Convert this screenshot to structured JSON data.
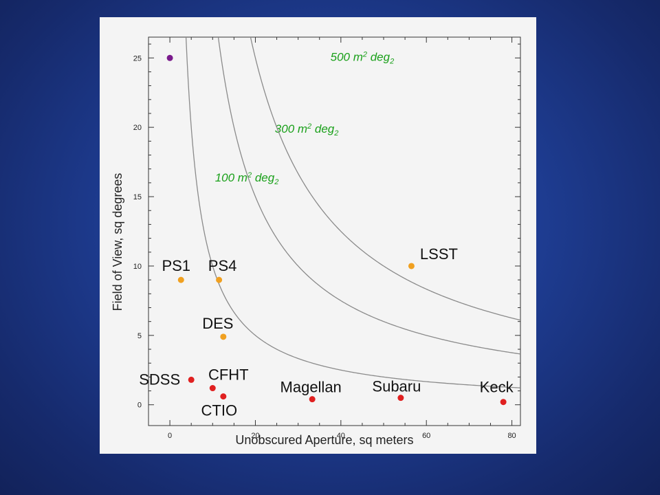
{
  "chart_data": {
    "type": "scatter",
    "title": "",
    "xlabel": "Unobscured Aperture, sq meters",
    "ylabel": "Field of View, sq degrees",
    "xlim": [
      -5,
      82
    ],
    "ylim": [
      -1.5,
      26.5
    ],
    "x_ticks": [
      0,
      20,
      40,
      60,
      80
    ],
    "y_ticks": [
      0,
      5,
      10,
      15,
      20,
      25
    ],
    "grid": false,
    "points": [
      {
        "label": "",
        "x": 0,
        "y": 25,
        "color": "#7a1a8c"
      },
      {
        "label": "PS1",
        "x": 2.6,
        "y": 9,
        "color": "#f0a020"
      },
      {
        "label": "PS4",
        "x": 11.5,
        "y": 9,
        "color": "#f0a020"
      },
      {
        "label": "DES",
        "x": 12.5,
        "y": 4.9,
        "color": "#f0a020"
      },
      {
        "label": "LSST",
        "x": 56.5,
        "y": 10,
        "color": "#f0a020"
      },
      {
        "label": "SDSS",
        "x": 5,
        "y": 1.8,
        "color": "#e02020"
      },
      {
        "label": "CFHT",
        "x": 10,
        "y": 1.2,
        "color": "#e02020"
      },
      {
        "label": "CTIO",
        "x": 12.5,
        "y": 0.6,
        "color": "#e02020"
      },
      {
        "label": "Magellan",
        "x": 33.3,
        "y": 0.4,
        "color": "#e02020"
      },
      {
        "label": "Subaru",
        "x": 54,
        "y": 0.5,
        "color": "#e02020"
      },
      {
        "label": "Keck",
        "x": 78,
        "y": 0.2,
        "color": "#e02020"
      }
    ],
    "curves": [
      {
        "name": "100 m² deg²",
        "value": 100,
        "base": "100 m",
        "sup1": "2",
        "mid": " deg",
        "sup2": "2"
      },
      {
        "name": "300 m² deg²",
        "value": 300,
        "base": "300 m",
        "sup1": "2",
        "mid": " deg",
        "sup2": "2"
      },
      {
        "name": "500 m² deg²",
        "value": 500,
        "base": "500 m",
        "sup1": "2",
        "mid": " deg",
        "sup2": "2"
      }
    ]
  }
}
